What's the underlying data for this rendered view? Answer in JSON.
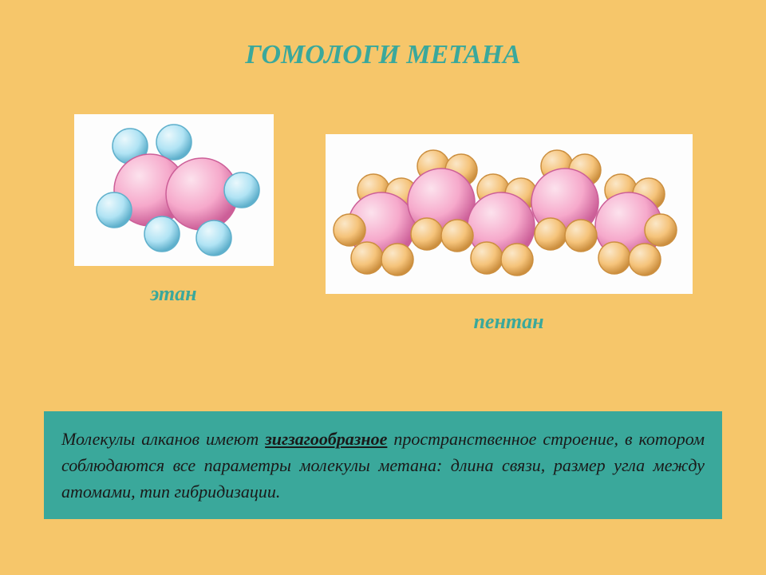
{
  "background_color": "#f6c66a",
  "title": {
    "text": "ГОМОЛОГИ МЕТАНА",
    "color": "#3aa89b",
    "fontsize": 34
  },
  "ethane": {
    "label": "этан",
    "label_color": "#3aa89b",
    "label_fontsize": 26,
    "carbon_color": "#f6a9cb",
    "carbon_highlight": "#fce2ed",
    "carbon_stroke": "#cc5f98",
    "hydrogen_color": "#b0e3f4",
    "hydrogen_highlight": "#eaf8fc",
    "hydrogen_stroke": "#5fb0cc",
    "img_bg": "#fdfdfd",
    "carbon_r": 45,
    "hydrogen_r": 22
  },
  "pentane": {
    "label": "пентан",
    "label_color": "#3aa89b",
    "label_fontsize": 26,
    "carbon_color": "#f6a9cb",
    "carbon_highlight": "#fce2ed",
    "carbon_stroke": "#cc5f98",
    "hydrogen_color": "#f5c37a",
    "hydrogen_highlight": "#fbe7c8",
    "hydrogen_stroke": "#cc8f3f",
    "img_bg": "#fdfdfd",
    "carbon_r": 42,
    "hydrogen_r": 20
  },
  "textbox": {
    "bg_color": "#3aa89b",
    "text_color": "#1a1a1a",
    "fontsize": 22,
    "line1_pre": "Молекулы алканов имеют ",
    "emph": "зигзагообразное",
    "rest": " пространственное строение, в котором соблюдаются все параметры молекулы метана: длина связи, размер угла между атомами, тип гибридизации."
  }
}
